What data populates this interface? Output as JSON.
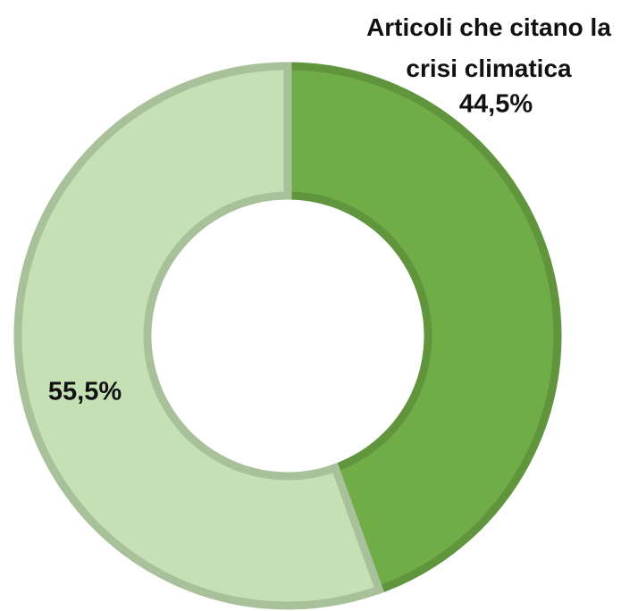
{
  "chart_data": {
    "type": "donut",
    "categories": [
      "Articoli che citano la crisi climatica",
      null
    ],
    "values": [
      44.5,
      55.5
    ],
    "value_labels": [
      "44,5%",
      "55,5%"
    ],
    "colors": [
      "#70ad47",
      "#c5e0b4"
    ]
  }
}
